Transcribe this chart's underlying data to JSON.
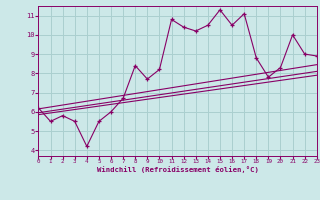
{
  "xlabel": "Windchill (Refroidissement éolien,°C)",
  "bg_color": "#cce8e8",
  "grid_color": "#aacfcf",
  "line_color": "#880066",
  "scatter_x": [
    0,
    1,
    2,
    3,
    4,
    5,
    6,
    7,
    8,
    9,
    10,
    11,
    12,
    13,
    14,
    15,
    16,
    17,
    18,
    19,
    20,
    21,
    22,
    23
  ],
  "scatter_y": [
    6.2,
    5.5,
    5.8,
    5.5,
    4.2,
    5.5,
    6.0,
    6.7,
    8.4,
    7.7,
    8.2,
    10.8,
    10.4,
    10.2,
    10.5,
    11.3,
    10.5,
    11.1,
    8.8,
    7.8,
    8.3,
    10.0,
    9.0,
    8.9
  ],
  "xlim": [
    0,
    23
  ],
  "ylim": [
    3.7,
    11.5
  ],
  "yticks": [
    4,
    5,
    6,
    7,
    8,
    9,
    10,
    11
  ],
  "xticks": [
    0,
    1,
    2,
    3,
    4,
    5,
    6,
    7,
    8,
    9,
    10,
    11,
    12,
    13,
    14,
    15,
    16,
    17,
    18,
    19,
    20,
    21,
    22,
    23
  ],
  "reg_lines": [
    {
      "x": [
        0,
        23
      ],
      "y": [
        5.85,
        7.9
      ]
    },
    {
      "x": [
        0,
        23
      ],
      "y": [
        5.95,
        8.1
      ]
    },
    {
      "x": [
        0,
        23
      ],
      "y": [
        6.15,
        8.45
      ]
    }
  ]
}
